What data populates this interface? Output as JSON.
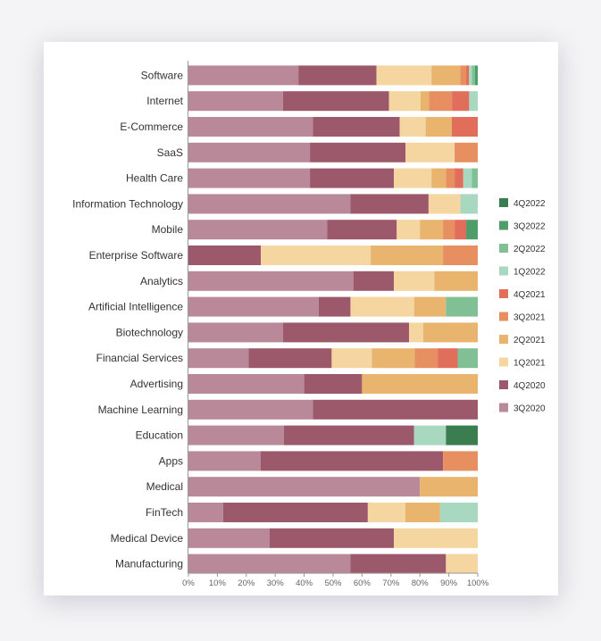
{
  "chart_data": {
    "type": "bar",
    "orientation": "horizontal",
    "stacked": true,
    "normalized": true,
    "categories": [
      "Software",
      "Internet",
      "E-Commerce",
      "SaaS",
      "Health Care",
      "Information Technology",
      "Mobile",
      "Enterprise Software",
      "Analytics",
      "Artificial Intelligence",
      "Biotechnology",
      "Financial Services",
      "Advertising",
      "Machine Learning",
      "Education",
      "Apps",
      "Medical",
      "FinTech",
      "Medical Device",
      "Manufacturing"
    ],
    "series": [
      {
        "name": "3Q2020",
        "color": "#b9899a",
        "values": [
          38,
          33,
          43,
          42,
          42,
          56,
          48,
          0,
          57,
          45,
          33,
          21,
          40,
          43,
          33,
          25,
          80,
          12,
          28,
          56
        ]
      },
      {
        "name": "4Q2020",
        "color": "#9c596c",
        "values": [
          27,
          37,
          30,
          33,
          29,
          27,
          24,
          25,
          14,
          11,
          44,
          29,
          20,
          57,
          45,
          63,
          0,
          50,
          43,
          33
        ]
      },
      {
        "name": "1Q2021",
        "color": "#f5d5a0",
        "values": [
          19,
          11,
          9,
          17,
          13,
          11,
          8,
          38,
          14,
          22,
          5,
          14,
          0,
          0,
          0,
          0,
          0,
          13,
          29,
          11
        ]
      },
      {
        "name": "2Q2021",
        "color": "#e8b46e",
        "values": [
          10,
          3,
          9,
          0,
          5,
          0,
          8,
          25,
          15,
          11,
          19,
          15,
          40,
          0,
          0,
          0,
          20,
          12,
          0,
          0
        ]
      },
      {
        "name": "3Q2021",
        "color": "#e88f62",
        "values": [
          2,
          8,
          0,
          8,
          3,
          0,
          4,
          12,
          0,
          0,
          0,
          8,
          0,
          0,
          0,
          12,
          0,
          0,
          0,
          0
        ]
      },
      {
        "name": "4Q2021",
        "color": "#e16e5b",
        "values": [
          1,
          6,
          9,
          0,
          3,
          0,
          4,
          0,
          0,
          0,
          0,
          7,
          0,
          0,
          0,
          0,
          0,
          0,
          0,
          0
        ]
      },
      {
        "name": "1Q2022",
        "color": "#a8d8c0",
        "values": [
          1,
          3,
          0,
          0,
          3,
          6,
          0,
          0,
          0,
          0,
          0,
          0,
          0,
          0,
          11,
          0,
          0,
          13,
          0,
          0
        ]
      },
      {
        "name": "2Q2022",
        "color": "#80c094",
        "values": [
          1,
          0,
          0,
          0,
          2,
          0,
          0,
          0,
          0,
          11,
          0,
          7,
          0,
          0,
          0,
          0,
          0,
          0,
          0,
          0
        ]
      },
      {
        "name": "3Q2022",
        "color": "#4f9d69",
        "values": [
          1,
          0,
          0,
          0,
          0,
          0,
          4,
          0,
          0,
          0,
          0,
          0,
          0,
          0,
          0,
          0,
          0,
          0,
          0,
          0
        ]
      },
      {
        "name": "4Q2022",
        "color": "#3b7d4e",
        "values": [
          0,
          0,
          0,
          0,
          0,
          0,
          0,
          0,
          0,
          0,
          0,
          0,
          0,
          0,
          11,
          0,
          0,
          0,
          0,
          0
        ]
      }
    ],
    "xlim": [
      0,
      100
    ],
    "x_ticks": [
      "0%",
      "10%",
      "20%",
      "30%",
      "40%",
      "50%",
      "60%",
      "70%",
      "80%",
      "90%",
      "100%"
    ],
    "xlabel": "",
    "ylabel": "",
    "grid": false,
    "legend_position": "right",
    "legend_order": [
      "4Q2022",
      "3Q2022",
      "2Q2022",
      "1Q2022",
      "4Q2021",
      "3Q2021",
      "2Q2021",
      "1Q2021",
      "4Q2020",
      "3Q2020"
    ]
  }
}
